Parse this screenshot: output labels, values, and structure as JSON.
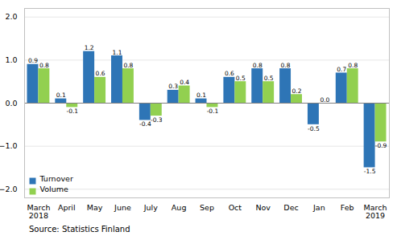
{
  "chart_data": {
    "type": "bar",
    "categories": [
      "March\n2018",
      "April",
      "May",
      "June",
      "July",
      "Aug",
      "Sep",
      "Oct",
      "Nov",
      "Dec",
      "Jan",
      "Feb",
      "March\n2019"
    ],
    "series": [
      {
        "name": "Turnover",
        "color": "#2E75B6",
        "values": [
          0.9,
          0.1,
          1.2,
          1.1,
          -0.4,
          0.3,
          0.1,
          0.6,
          0.8,
          0.8,
          -0.5,
          0.7,
          -1.5
        ],
        "value_labels": [
          "0.9",
          "0.1",
          "1.2",
          "1.1",
          "-0.4",
          "0.3",
          "0.1",
          "0.6",
          "0.8",
          "0.8",
          "-0.5",
          "0.7",
          "-1.5"
        ]
      },
      {
        "name": "Volume",
        "color": "#92D050",
        "values": [
          0.8,
          -0.1,
          0.6,
          0.8,
          -0.3,
          0.4,
          -0.1,
          0.5,
          0.5,
          0.2,
          0.0,
          0.8,
          -0.9
        ],
        "value_labels": [
          "0.8",
          "-0.1",
          "0.6",
          "0.8",
          "-0.3",
          "0.4",
          "-0.1",
          "0.5",
          "0.5",
          "0.2",
          "0.0",
          "0.8",
          "-0.9"
        ]
      }
    ],
    "ylim": [
      -2.2,
      2.2
    ],
    "yticks": [
      -2,
      -1,
      0,
      1,
      2
    ],
    "grid": true,
    "legend": "lower left",
    "data_labels": true,
    "annotations": [
      "Source: Statistics Finland"
    ]
  }
}
